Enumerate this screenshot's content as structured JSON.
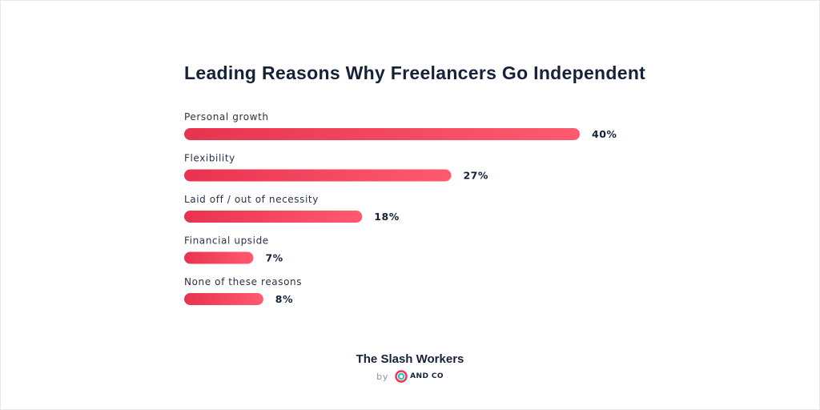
{
  "chart_data": {
    "type": "bar",
    "orientation": "horizontal",
    "title": "Leading Reasons Why Freelancers Go Independent",
    "categories": [
      "Personal growth",
      "Flexibility",
      "Laid off / out of necessity",
      "Financial upside",
      "None of these reasons"
    ],
    "values": [
      40,
      27,
      18,
      7,
      8
    ],
    "value_labels": [
      "40%",
      "27%",
      "18%",
      "7%",
      "8%"
    ],
    "unit": "%",
    "xlim": [
      0,
      40
    ],
    "grid": false,
    "legend": "none",
    "colors": {
      "bar_start": "#e8334f",
      "bar_end": "#ff5a70"
    }
  },
  "footer": {
    "title": "The Slash Workers",
    "by": "by",
    "brand": "AND CO",
    "brand_colors": {
      "ring_outer": "#f0344f",
      "ring_inner": "#1fc4c2"
    }
  }
}
